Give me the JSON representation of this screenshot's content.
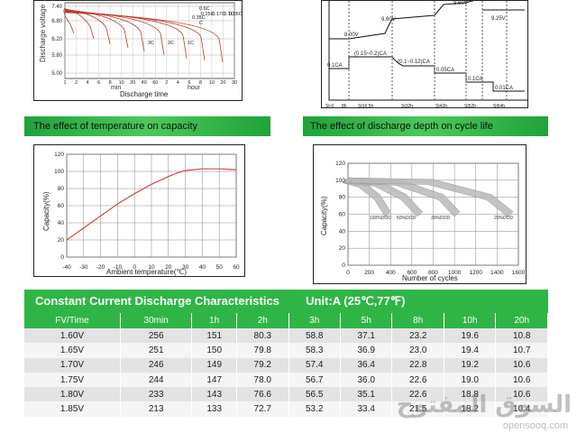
{
  "discharge_time_chart": {
    "y_ticks": [
      "7.40",
      "6.80",
      "6.20",
      "5.80",
      "5.00"
    ],
    "y_label": "Discharge voltage",
    "x_ticks": [
      "1",
      "2",
      "4",
      "6",
      "8",
      "10",
      "20",
      "40",
      "60",
      "2",
      "4",
      "6",
      "8",
      "10",
      "20",
      "30"
    ],
    "x_unit_min": "min",
    "x_unit_hour": "hour",
    "x_label": "Discharge time",
    "curve_labels": [
      "3C",
      "2C",
      "1C",
      "0.6C",
      "0.25C",
      "0.17C",
      "0.1C",
      "0.05C",
      "0.35C",
      "C"
    ]
  },
  "charge_chart": {
    "voltage_labels": [
      "8.00V",
      "9.60V",
      "9.60V",
      "9.25V"
    ],
    "current_labels": [
      "0.1CA",
      "(0.15~0.2)CA",
      "(0.1~0.12)CA",
      "0.05CA",
      "0.1CA",
      "0.01CA"
    ],
    "time_labels": [
      "St-0",
      "8h",
      "St16.5h",
      "St32h",
      "St42h",
      "St52h",
      "St64h"
    ]
  },
  "temperature_section": {
    "caption": "The effect of temperature on capacity",
    "chart_data": {
      "type": "line",
      "title": "",
      "xlabel": "Ambient temperature(℃)",
      "ylabel": "Capacity(%)",
      "x_ticks": [
        "-40",
        "-30",
        "-20",
        "-10",
        "0",
        "10",
        "20",
        "30",
        "40",
        "50",
        "60"
      ],
      "y_ticks": [
        "0",
        "20",
        "40",
        "60",
        "80",
        "100",
        "120"
      ],
      "xlim": [
        -40,
        60
      ],
      "ylim": [
        0,
        120
      ],
      "series": [
        {
          "name": "capacity",
          "x": [
            -40,
            -30,
            -20,
            -10,
            0,
            10,
            20,
            25,
            30,
            40,
            50,
            60
          ],
          "values": [
            20,
            34,
            48,
            62,
            74,
            85,
            94,
            98,
            101,
            103,
            103,
            102
          ]
        }
      ]
    }
  },
  "depth_section": {
    "caption": "The effect of discharge depth on cycle life",
    "chart_data": {
      "type": "area",
      "title": "",
      "xlabel": "Number of cycles",
      "ylabel": "Capacity(%)",
      "x_ticks": [
        "0",
        "200",
        "400",
        "600",
        "800",
        "1000",
        "1200",
        "1400",
        "1600"
      ],
      "y_ticks": [
        "0",
        "20",
        "40",
        "60",
        "80",
        "100",
        "120"
      ],
      "xlim": [
        0,
        1600
      ],
      "ylim": [
        0,
        120
      ],
      "series": [
        {
          "name": "100%DOD",
          "x": [
            0,
            150,
            300,
            400
          ],
          "values": [
            100,
            95,
            80,
            60
          ]
        },
        {
          "name": "50%DOD",
          "x": [
            0,
            300,
            550,
            700
          ],
          "values": [
            100,
            96,
            80,
            60
          ]
        },
        {
          "name": "30%DOD",
          "x": [
            0,
            500,
            900,
            1050
          ],
          "values": [
            100,
            97,
            80,
            60
          ]
        },
        {
          "name": "20%DOD",
          "x": [
            0,
            800,
            1350,
            1550
          ],
          "values": [
            100,
            98,
            80,
            60
          ]
        }
      ],
      "labels": [
        "100%DOD",
        "50%DOD",
        "30%DOD",
        "20%DOD"
      ]
    }
  },
  "table": {
    "title": "Constant Current Discharge Characteristics",
    "unit": "Unit:A (25℃,77℉)",
    "columns": [
      "FV/Time",
      "30min",
      "1h",
      "2h",
      "3h",
      "5h",
      "8h",
      "10h",
      "20h"
    ],
    "rows": [
      [
        "1.60V",
        "256",
        "151",
        "80.3",
        "58.8",
        "37.1",
        "23.2",
        "19.6",
        "10.8"
      ],
      [
        "1.65V",
        "251",
        "150",
        "79.8",
        "58.3",
        "36.9",
        "23.0",
        "19.4",
        "10.7"
      ],
      [
        "1.70V",
        "246",
        "149",
        "79.2",
        "57.4",
        "36.4",
        "22.8",
        "19.2",
        "10.6"
      ],
      [
        "1.75V",
        "244",
        "147",
        "78.0",
        "56.7",
        "36.0",
        "22.6",
        "19.0",
        "10.6"
      ],
      [
        "1.80V",
        "233",
        "143",
        "76.6",
        "56.5",
        "35.1",
        "22.6",
        "18.8",
        "10.6"
      ],
      [
        "1.85V",
        "213",
        "133",
        "72.7",
        "53.2",
        "33.4",
        "21.5",
        "18.2",
        "10.4"
      ]
    ]
  },
  "watermark": {
    "text": "السوق المفتوح",
    "sub": "opensooq.com"
  }
}
